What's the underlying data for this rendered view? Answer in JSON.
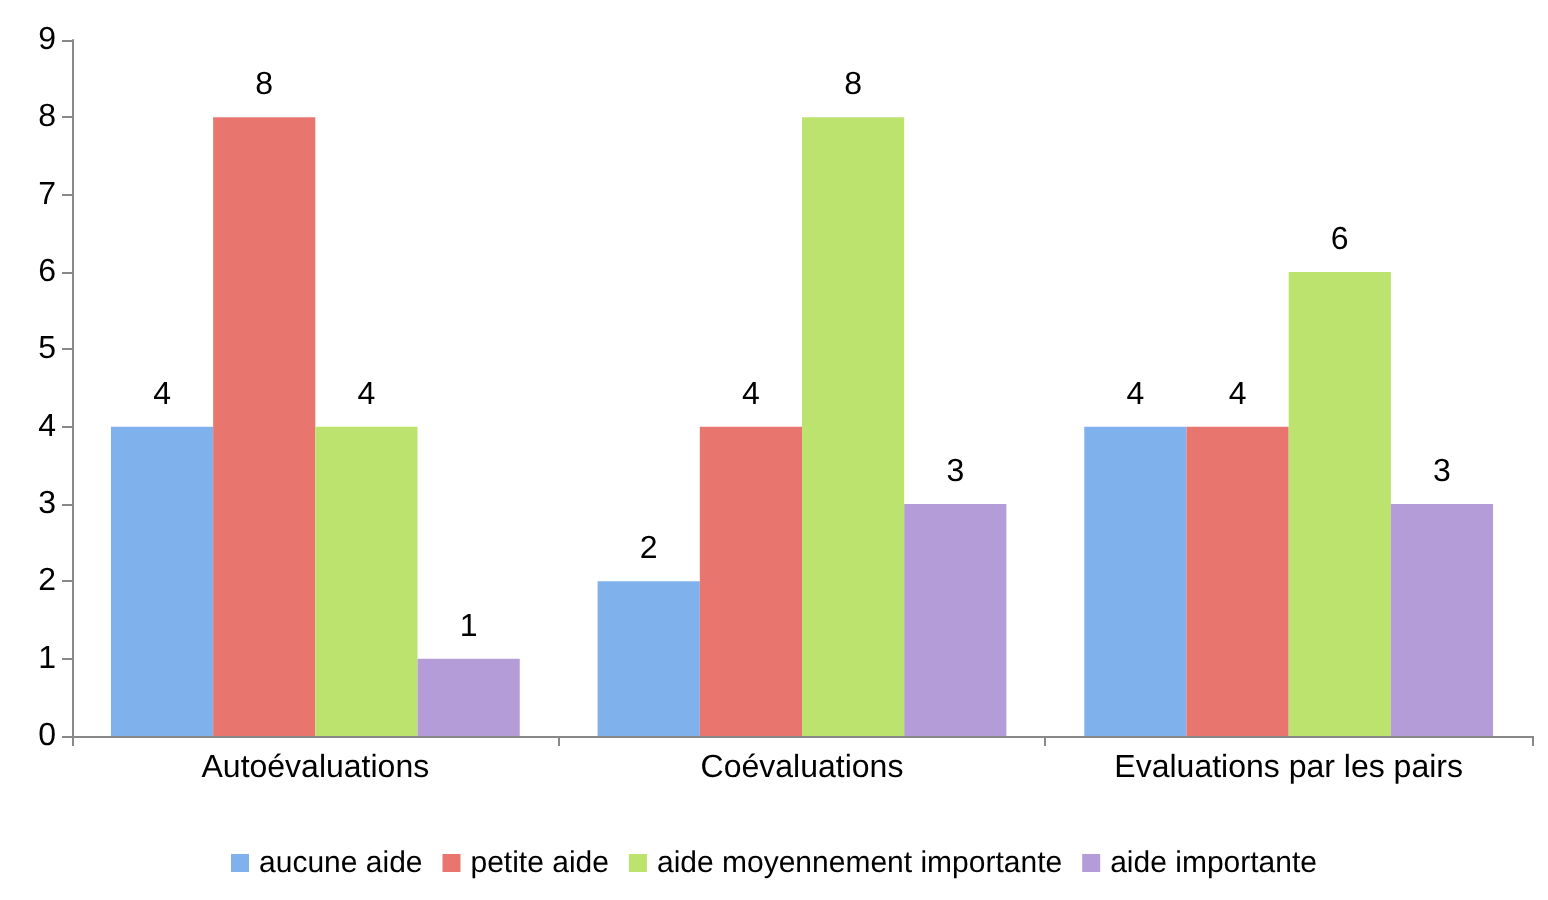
{
  "chart_data": {
    "type": "bar",
    "categories": [
      "Autoévaluations",
      "Coévaluations",
      "Evaluations par les pairs"
    ],
    "series": [
      {
        "name": "aucune aide",
        "color": "#7fb1ec",
        "values": [
          4,
          2,
          4
        ]
      },
      {
        "name": "petite aide",
        "color": "#e8766f",
        "values": [
          8,
          4,
          4
        ]
      },
      {
        "name": "aide moyennement importante",
        "color": "#bde36f",
        "values": [
          4,
          8,
          6
        ]
      },
      {
        "name": "aide importante",
        "color": "#b49cd8",
        "values": [
          1,
          3,
          3
        ]
      }
    ],
    "ylim": [
      0,
      9
    ],
    "yticks": [
      0,
      1,
      2,
      3,
      4,
      5,
      6,
      7,
      8,
      9
    ],
    "data_labels": true,
    "grid": false,
    "legend": "bottom"
  }
}
